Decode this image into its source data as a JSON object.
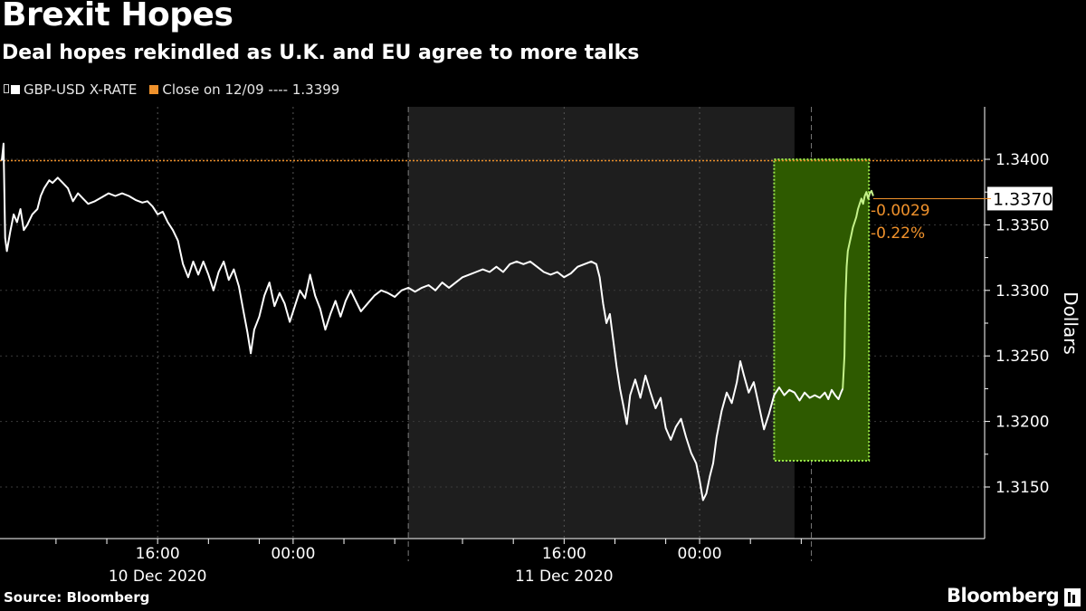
{
  "header": {
    "title": "Brexit Hopes",
    "subtitle": "Deal hopes rekindled as U.K. and EU agree to more talks"
  },
  "legend": {
    "series_label": "GBP-USD X-RATE",
    "close_label": "Close on 12/09 ---- 1.3399"
  },
  "footer": {
    "source": "Source: Bloomberg",
    "brand": "Bloomberg"
  },
  "colors": {
    "background": "#000000",
    "line": "#ffffff",
    "highlight_line": "#c5f28a",
    "highlight_fill": "#2e5a00",
    "highlight_border": "#9be84c",
    "reference": "#f0922c",
    "session_shade": "#1e1e1e"
  },
  "chart_data": {
    "type": "line",
    "ylabel": "Dollars",
    "ylim": [
      1.3115,
      1.3445
    ],
    "yticks": [
      1.315,
      1.32,
      1.325,
      1.33,
      1.335,
      1.34
    ],
    "ytick_labels": [
      "1.3150",
      "1.3200",
      "1.3250",
      "1.3300",
      "1.3350",
      "1.3400"
    ],
    "time_unit": "hours after 10 Dec 2020 00:00",
    "xlim": [
      6.8,
      56.6
    ],
    "x_time_ticks": [
      {
        "x": 16,
        "label": "16:00"
      },
      {
        "x": 24,
        "label": "00:00"
      },
      {
        "x": 40,
        "label": "16:00"
      },
      {
        "x": 48,
        "label": "00:00"
      }
    ],
    "x_date_labels": [
      {
        "x": 16,
        "label": "10 Dec 2020"
      },
      {
        "x": 40,
        "label": "11 Dec 2020"
      }
    ],
    "x_minor_ticks": [
      10,
      13,
      16,
      19,
      22,
      24,
      27,
      30,
      34,
      37,
      40,
      43,
      46,
      48,
      51,
      54
    ],
    "date_separators": [
      30.8,
      54.6
    ],
    "shaded_session": [
      30.8,
      53.6
    ],
    "reference_line": {
      "name": "Close on 12/09",
      "value": 1.3399
    },
    "last_value": {
      "value": 1.337,
      "label": "1.3370"
    },
    "change_annotation": {
      "change": "-0.0029",
      "percent": "-0.22%"
    },
    "highlight_window": {
      "x": [
        52.4,
        58.0
      ],
      "y": [
        1.317,
        1.34
      ]
    },
    "series": [
      {
        "name": "GBP-USD X-RATE",
        "points": [
          [
            6.8,
            1.3399
          ],
          [
            6.9,
            1.3412
          ],
          [
            7.0,
            1.334
          ],
          [
            7.1,
            1.333
          ],
          [
            7.3,
            1.3345
          ],
          [
            7.5,
            1.3358
          ],
          [
            7.7,
            1.3352
          ],
          [
            7.9,
            1.3362
          ],
          [
            8.1,
            1.3346
          ],
          [
            8.3,
            1.335
          ],
          [
            8.6,
            1.3358
          ],
          [
            8.9,
            1.3362
          ],
          [
            9.1,
            1.3372
          ],
          [
            9.3,
            1.3378
          ],
          [
            9.6,
            1.3384
          ],
          [
            9.8,
            1.3382
          ],
          [
            10.1,
            1.3386
          ],
          [
            10.4,
            1.3382
          ],
          [
            10.7,
            1.3378
          ],
          [
            11.0,
            1.3368
          ],
          [
            11.3,
            1.3374
          ],
          [
            11.6,
            1.337
          ],
          [
            11.9,
            1.3366
          ],
          [
            12.3,
            1.3368
          ],
          [
            12.7,
            1.3371
          ],
          [
            13.1,
            1.3374
          ],
          [
            13.5,
            1.3372
          ],
          [
            13.9,
            1.3374
          ],
          [
            14.3,
            1.3372
          ],
          [
            14.7,
            1.3369
          ],
          [
            15.1,
            1.3367
          ],
          [
            15.4,
            1.3368
          ],
          [
            15.7,
            1.3364
          ],
          [
            16.0,
            1.3358
          ],
          [
            16.3,
            1.336
          ],
          [
            16.6,
            1.3352
          ],
          [
            16.9,
            1.3346
          ],
          [
            17.2,
            1.3338
          ],
          [
            17.5,
            1.332
          ],
          [
            17.8,
            1.331
          ],
          [
            18.1,
            1.3322
          ],
          [
            18.4,
            1.3312
          ],
          [
            18.7,
            1.3322
          ],
          [
            19.0,
            1.3312
          ],
          [
            19.3,
            1.33
          ],
          [
            19.6,
            1.3314
          ],
          [
            19.9,
            1.3322
          ],
          [
            20.2,
            1.3308
          ],
          [
            20.5,
            1.3316
          ],
          [
            20.8,
            1.3303
          ],
          [
            21.1,
            1.3282
          ],
          [
            21.3,
            1.3268
          ],
          [
            21.5,
            1.3252
          ],
          [
            21.7,
            1.327
          ],
          [
            22.0,
            1.328
          ],
          [
            22.3,
            1.3296
          ],
          [
            22.6,
            1.3306
          ],
          [
            22.9,
            1.3288
          ],
          [
            23.2,
            1.3298
          ],
          [
            23.5,
            1.329
          ],
          [
            23.8,
            1.3276
          ],
          [
            24.1,
            1.3288
          ],
          [
            24.4,
            1.33
          ],
          [
            24.7,
            1.3294
          ],
          [
            25.0,
            1.3312
          ],
          [
            25.3,
            1.3296
          ],
          [
            25.6,
            1.3286
          ],
          [
            25.9,
            1.327
          ],
          [
            26.2,
            1.3282
          ],
          [
            26.5,
            1.3292
          ],
          [
            26.8,
            1.328
          ],
          [
            27.1,
            1.3292
          ],
          [
            27.4,
            1.33
          ],
          [
            27.7,
            1.3292
          ],
          [
            28.0,
            1.3284
          ],
          [
            28.4,
            1.329
          ],
          [
            28.8,
            1.3296
          ],
          [
            29.2,
            1.33
          ],
          [
            29.6,
            1.3298
          ],
          [
            30.0,
            1.3295
          ],
          [
            30.4,
            1.33
          ],
          [
            30.8,
            1.3302
          ],
          [
            31.2,
            1.3299
          ],
          [
            31.6,
            1.3302
          ],
          [
            32.0,
            1.3304
          ],
          [
            32.4,
            1.33
          ],
          [
            32.8,
            1.3306
          ],
          [
            33.2,
            1.3302
          ],
          [
            33.6,
            1.3306
          ],
          [
            34.0,
            1.331
          ],
          [
            34.4,
            1.3312
          ],
          [
            34.8,
            1.3314
          ],
          [
            35.2,
            1.3316
          ],
          [
            35.6,
            1.3314
          ],
          [
            36.0,
            1.3318
          ],
          [
            36.4,
            1.3314
          ],
          [
            36.8,
            1.332
          ],
          [
            37.2,
            1.3322
          ],
          [
            37.6,
            1.332
          ],
          [
            38.0,
            1.3322
          ],
          [
            38.4,
            1.3318
          ],
          [
            38.8,
            1.3314
          ],
          [
            39.2,
            1.3312
          ],
          [
            39.6,
            1.3314
          ],
          [
            40.0,
            1.331
          ],
          [
            40.4,
            1.3313
          ],
          [
            40.8,
            1.3318
          ],
          [
            41.2,
            1.332
          ],
          [
            41.6,
            1.3322
          ],
          [
            41.9,
            1.332
          ],
          [
            42.1,
            1.331
          ],
          [
            42.3,
            1.329
          ],
          [
            42.5,
            1.3275
          ],
          [
            42.7,
            1.3282
          ],
          [
            42.9,
            1.3262
          ],
          [
            43.1,
            1.3242
          ],
          [
            43.3,
            1.3225
          ],
          [
            43.5,
            1.3212
          ],
          [
            43.7,
            1.3198
          ],
          [
            43.9,
            1.322
          ],
          [
            44.2,
            1.3232
          ],
          [
            44.5,
            1.3218
          ],
          [
            44.8,
            1.3235
          ],
          [
            45.1,
            1.3222
          ],
          [
            45.4,
            1.321
          ],
          [
            45.7,
            1.3218
          ],
          [
            46.0,
            1.3195
          ],
          [
            46.3,
            1.3186
          ],
          [
            46.6,
            1.3196
          ],
          [
            46.9,
            1.3202
          ],
          [
            47.2,
            1.3188
          ],
          [
            47.5,
            1.3176
          ],
          [
            47.8,
            1.3168
          ],
          [
            48.0,
            1.3155
          ],
          [
            48.2,
            1.314
          ],
          [
            48.4,
            1.3145
          ],
          [
            48.6,
            1.3158
          ],
          [
            48.8,
            1.3168
          ],
          [
            49.0,
            1.3188
          ],
          [
            49.3,
            1.3208
          ],
          [
            49.6,
            1.3222
          ],
          [
            49.9,
            1.3214
          ],
          [
            50.2,
            1.323
          ],
          [
            50.4,
            1.3246
          ],
          [
            50.6,
            1.3236
          ],
          [
            50.9,
            1.3222
          ],
          [
            51.2,
            1.323
          ],
          [
            51.5,
            1.3212
          ],
          [
            51.8,
            1.3194
          ],
          [
            52.1,
            1.3206
          ],
          [
            52.4,
            1.322
          ],
          [
            52.7,
            1.3226
          ],
          [
            53.0,
            1.322
          ],
          [
            53.3,
            1.3224
          ],
          [
            53.6,
            1.3222
          ],
          [
            53.9,
            1.3216
          ],
          [
            54.2,
            1.3222
          ],
          [
            54.5,
            1.3218
          ],
          [
            54.8,
            1.322
          ],
          [
            55.1,
            1.3218
          ],
          [
            55.4,
            1.3222
          ],
          [
            55.6,
            1.3217
          ],
          [
            55.8,
            1.3224
          ],
          [
            56.0,
            1.322
          ],
          [
            56.2,
            1.3217
          ],
          [
            56.35,
            1.3222
          ],
          [
            56.45,
            1.3225
          ]
        ]
      },
      {
        "name": "highlight",
        "points": [
          [
            56.45,
            1.3225
          ],
          [
            56.55,
            1.325
          ],
          [
            56.6,
            1.329
          ],
          [
            56.68,
            1.3318
          ],
          [
            56.75,
            1.333
          ],
          [
            56.85,
            1.3336
          ],
          [
            56.95,
            1.3342
          ],
          [
            57.05,
            1.3348
          ],
          [
            57.15,
            1.3352
          ],
          [
            57.25,
            1.3356
          ],
          [
            57.35,
            1.3362
          ],
          [
            57.45,
            1.3366
          ],
          [
            57.55,
            1.337
          ],
          [
            57.65,
            1.3366
          ],
          [
            57.75,
            1.3372
          ],
          [
            57.85,
            1.3375
          ],
          [
            57.95,
            1.337
          ],
          [
            58.05,
            1.3374
          ],
          [
            58.15,
            1.3376
          ],
          [
            58.25,
            1.3372
          ]
        ]
      }
    ]
  }
}
